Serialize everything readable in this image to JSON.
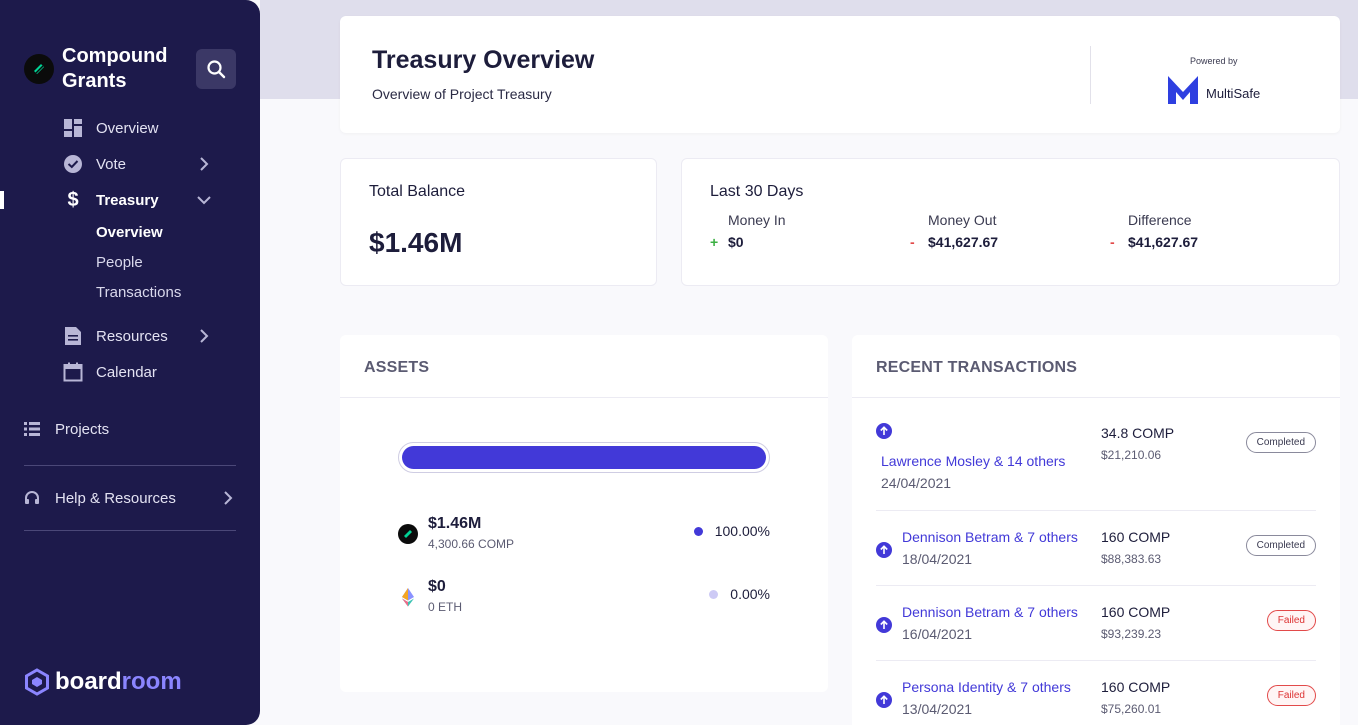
{
  "sidebar": {
    "brand": "Compound Grants",
    "nav": {
      "overview": "Overview",
      "vote": "Vote",
      "treasury": "Treasury",
      "treasury_sub": [
        "Overview",
        "People",
        "Transactions"
      ],
      "resources": "Resources",
      "calendar": "Calendar",
      "projects": "Projects",
      "help": "Help & Resources"
    },
    "footer_brand_a": "board",
    "footer_brand_b": "room"
  },
  "header": {
    "title": "Treasury Overview",
    "subtitle": "Overview of Project Treasury",
    "powered_by": "Powered by",
    "provider": "MultiSafe"
  },
  "balance": {
    "label": "Total Balance",
    "value": "$1.46M"
  },
  "last30": {
    "label": "Last 30 Days",
    "money_in": {
      "label": "Money In",
      "sign": "+",
      "value": "$0"
    },
    "money_out": {
      "label": "Money Out",
      "sign": "-",
      "value": "$41,627.67"
    },
    "difference": {
      "label": "Difference",
      "sign": "-",
      "value": "$41,627.67"
    }
  },
  "assets": {
    "title": "ASSETS",
    "bar_fill_fraction": 1.0,
    "items": [
      {
        "amount": "$1.46M",
        "quantity": "4,300.66 COMP",
        "percent": "100.00%",
        "color": "#4239d8",
        "icon": "compound-token-icon"
      },
      {
        "amount": "$0",
        "quantity": "0 ETH",
        "percent": "0.00%",
        "color": "#cdcaf5",
        "icon": "ethereum-icon"
      }
    ]
  },
  "transactions": {
    "title": "RECENT TRANSACTIONS",
    "items": [
      {
        "who": "Lawrence Mosley & 14 others",
        "date": "24/04/2021",
        "comp": "34.8 COMP",
        "usd": "$21,210.06",
        "status": "Completed"
      },
      {
        "who": "Dennison Betram & 7 others",
        "date": "18/04/2021",
        "comp": "160 COMP",
        "usd": "$88,383.63",
        "status": "Completed"
      },
      {
        "who": "Dennison Betram & 7 others",
        "date": "16/04/2021",
        "comp": "160 COMP",
        "usd": "$93,239.23",
        "status": "Failed"
      },
      {
        "who": "Persona Identity & 7 others",
        "date": "13/04/2021",
        "comp": "160 COMP",
        "usd": "$75,260.01",
        "status": "Failed"
      }
    ]
  }
}
